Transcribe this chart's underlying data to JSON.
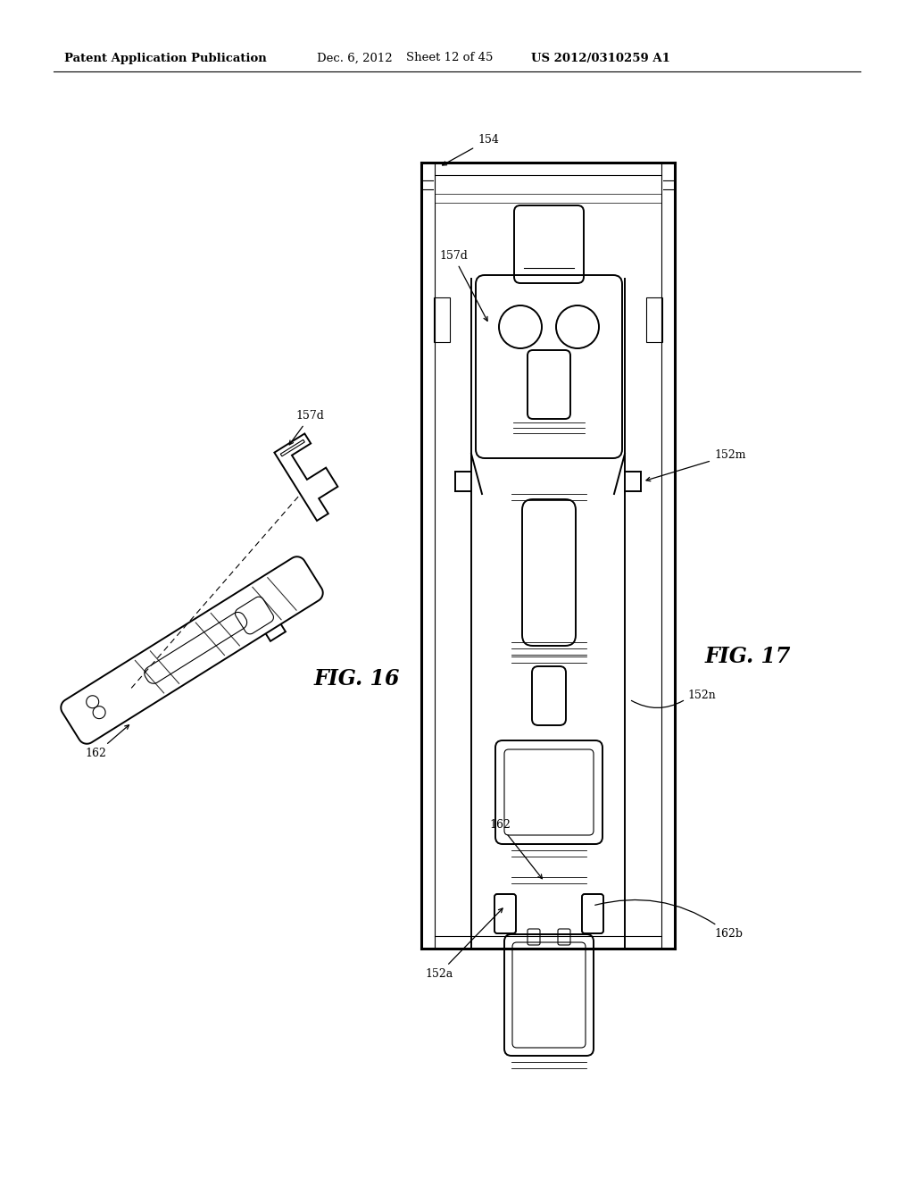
{
  "background_color": "#ffffff",
  "header_text": "Patent Application Publication",
  "header_date": "Dec. 6, 2012",
  "header_sheet": "Sheet 12 of 45",
  "header_patent": "US 2012/0310259 A1",
  "fig16_label": "FIG. 16",
  "fig17_label": "FIG. 17"
}
